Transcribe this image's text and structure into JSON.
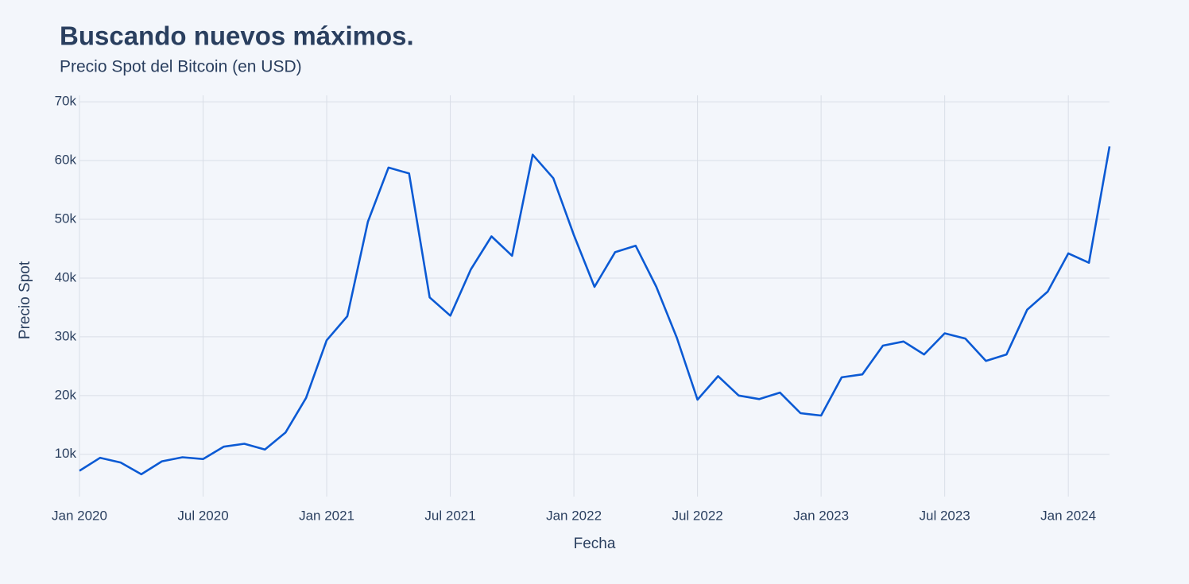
{
  "chart_data": {
    "type": "line",
    "title": "Buscando nuevos máximos.",
    "subtitle": "Precio Spot del Bitcoin (en USD)",
    "x_label": "Fecha",
    "y_label": "Precio Spot",
    "x": [
      "2020-01",
      "2020-02",
      "2020-03",
      "2020-04",
      "2020-05",
      "2020-06",
      "2020-07",
      "2020-08",
      "2020-09",
      "2020-10",
      "2020-11",
      "2020-12",
      "2021-01",
      "2021-02",
      "2021-03",
      "2021-04",
      "2021-05",
      "2021-06",
      "2021-07",
      "2021-08",
      "2021-09",
      "2021-10",
      "2021-11",
      "2021-12",
      "2022-01",
      "2022-02",
      "2022-03",
      "2022-04",
      "2022-05",
      "2022-06",
      "2022-07",
      "2022-08",
      "2022-09",
      "2022-10",
      "2022-11",
      "2022-12",
      "2023-01",
      "2023-02",
      "2023-03",
      "2023-04",
      "2023-05",
      "2023-06",
      "2023-07",
      "2023-08",
      "2023-09",
      "2023-10",
      "2023-11",
      "2023-12",
      "2024-01",
      "2024-02",
      "2024-03"
    ],
    "series": [
      {
        "name": "Precio Spot",
        "color": "#0b5ad4",
        "values": [
          7200,
          9400,
          8600,
          6600,
          8800,
          9500,
          9200,
          11300,
          11800,
          10800,
          13700,
          19600,
          29400,
          33500,
          49600,
          58800,
          57800,
          36700,
          33600,
          41500,
          47100,
          43800,
          61000,
          57000,
          47300,
          38500,
          44400,
          45500,
          38500,
          29800,
          19300,
          23300,
          20000,
          19400,
          20500,
          17000,
          16600,
          23100,
          23600,
          28500,
          29200,
          27000,
          30600,
          29700,
          25900,
          27000,
          34600,
          37700,
          44200,
          42600,
          62400
        ]
      }
    ],
    "xlim": [
      "2020-01",
      "2024-03"
    ],
    "xticks": [
      {
        "value": "2020-01",
        "label": "Jan 2020"
      },
      {
        "value": "2020-07",
        "label": "Jul 2020"
      },
      {
        "value": "2021-01",
        "label": "Jan 2021"
      },
      {
        "value": "2021-07",
        "label": "Jul 2021"
      },
      {
        "value": "2022-01",
        "label": "Jan 2022"
      },
      {
        "value": "2022-07",
        "label": "Jul 2022"
      },
      {
        "value": "2023-01",
        "label": "Jan 2023"
      },
      {
        "value": "2023-07",
        "label": "Jul 2023"
      },
      {
        "value": "2024-01",
        "label": "Jan 2024"
      }
    ],
    "ylim": [
      2800,
      71100
    ],
    "yticks": [
      {
        "value": 10000,
        "label": "10k"
      },
      {
        "value": 20000,
        "label": "20k"
      },
      {
        "value": 30000,
        "label": "30k"
      },
      {
        "value": 40000,
        "label": "40k"
      },
      {
        "value": 50000,
        "label": "50k"
      },
      {
        "value": 60000,
        "label": "60k"
      },
      {
        "value": 70000,
        "label": "70k"
      }
    ],
    "grid": true
  }
}
